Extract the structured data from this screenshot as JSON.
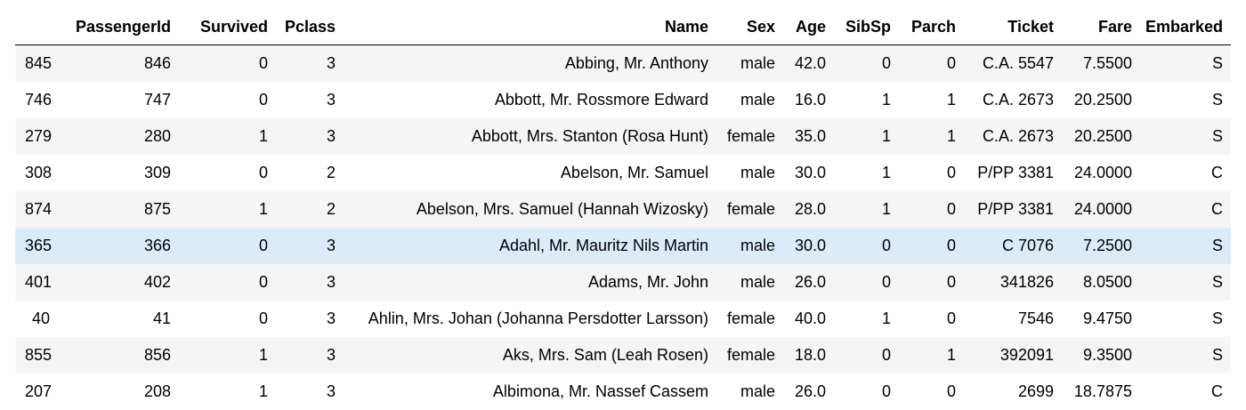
{
  "table": {
    "columns": [
      "",
      "PassengerId",
      "Survived",
      "Pclass",
      "Name",
      "Sex",
      "Age",
      "SibSp",
      "Parch",
      "Ticket",
      "Fare",
      "Embarked"
    ],
    "rows": [
      [
        "845",
        "846",
        "0",
        "3",
        "Abbing, Mr. Anthony",
        "male",
        "42.0",
        "0",
        "0",
        "C.A. 5547",
        "7.5500",
        "S"
      ],
      [
        "746",
        "747",
        "0",
        "3",
        "Abbott, Mr. Rossmore Edward",
        "male",
        "16.0",
        "1",
        "1",
        "C.A. 2673",
        "20.2500",
        "S"
      ],
      [
        "279",
        "280",
        "1",
        "3",
        "Abbott, Mrs. Stanton (Rosa Hunt)",
        "female",
        "35.0",
        "1",
        "1",
        "C.A. 2673",
        "20.2500",
        "S"
      ],
      [
        "308",
        "309",
        "0",
        "2",
        "Abelson, Mr. Samuel",
        "male",
        "30.0",
        "1",
        "0",
        "P/PP 3381",
        "24.0000",
        "C"
      ],
      [
        "874",
        "875",
        "1",
        "2",
        "Abelson, Mrs. Samuel (Hannah Wizosky)",
        "female",
        "28.0",
        "1",
        "0",
        "P/PP 3381",
        "24.0000",
        "C"
      ],
      [
        "365",
        "366",
        "0",
        "3",
        "Adahl, Mr. Mauritz Nils Martin",
        "male",
        "30.0",
        "0",
        "0",
        "C 7076",
        "7.2500",
        "S"
      ],
      [
        "401",
        "402",
        "0",
        "3",
        "Adams, Mr. John",
        "male",
        "26.0",
        "0",
        "0",
        "341826",
        "8.0500",
        "S"
      ],
      [
        "40",
        "41",
        "0",
        "3",
        "Ahlin, Mrs. Johan (Johanna Persdotter Larsson)",
        "female",
        "40.0",
        "1",
        "0",
        "7546",
        "9.4750",
        "S"
      ],
      [
        "855",
        "856",
        "1",
        "3",
        "Aks, Mrs. Sam (Leah Rosen)",
        "female",
        "18.0",
        "0",
        "1",
        "392091",
        "9.3500",
        "S"
      ],
      [
        "207",
        "208",
        "1",
        "3",
        "Albimona, Mr. Nassef Cassem",
        "male",
        "26.0",
        "0",
        "0",
        "2699",
        "18.7875",
        "C"
      ]
    ],
    "highlighted_row": 5
  },
  "colors": {
    "stripe": "#f5f5f5",
    "highlight": "#dcebf8",
    "header_rule": "#000000"
  }
}
